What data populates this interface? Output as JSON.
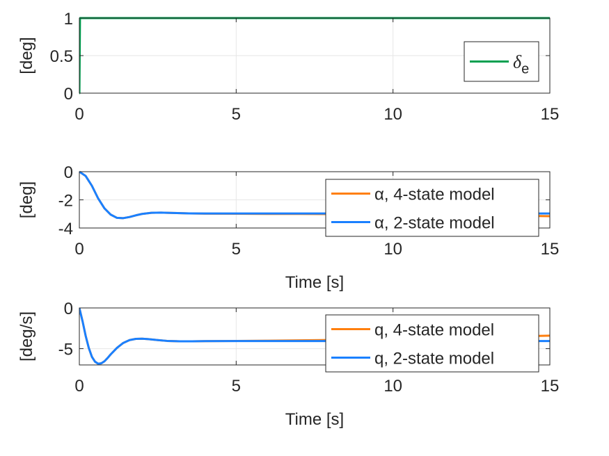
{
  "chart_data": [
    {
      "type": "line",
      "ylabel": "[deg]",
      "xlabel": "",
      "xlim": [
        0,
        15
      ],
      "ylim": [
        0,
        1
      ],
      "xticks": [
        "0",
        "5",
        "10",
        "15"
      ],
      "yticks": [
        "0",
        "0.5",
        "1"
      ],
      "grid": true,
      "legend_position": "right",
      "series": [
        {
          "name": "δ",
          "name_sub": "e",
          "color": "#00a050",
          "x": [
            0,
            0.001,
            0.02,
            0.03,
            15
          ],
          "y": [
            0,
            0.0,
            1,
            1,
            1
          ]
        }
      ]
    },
    {
      "type": "line",
      "ylabel": "[deg]",
      "xlabel": "Time [s]",
      "xlim": [
        0,
        15
      ],
      "ylim": [
        -4,
        0
      ],
      "xticks": [
        "0",
        "5",
        "10",
        "15"
      ],
      "yticks": [
        "-4",
        "-2",
        "0"
      ],
      "grid": true,
      "legend_position": "right",
      "series": [
        {
          "name": "α, 4-state model",
          "color": "#ff7f0e",
          "x": [
            0,
            0.2,
            0.4,
            0.6,
            0.8,
            1.0,
            1.2,
            1.4,
            1.6,
            1.8,
            2.0,
            2.3,
            2.6,
            3.0,
            3.5,
            4.0,
            5.0,
            6.0,
            7.0,
            8.0,
            9.0,
            10.0,
            11.0,
            12.0,
            13.0,
            14.0,
            15.0
          ],
          "y": [
            0,
            -0.3,
            -1.0,
            -1.9,
            -2.6,
            -3.05,
            -3.28,
            -3.3,
            -3.22,
            -3.1,
            -3.0,
            -2.92,
            -2.91,
            -2.93,
            -2.96,
            -2.98,
            -2.99,
            -3.0,
            -3.0,
            -3.01,
            -3.02,
            -3.04,
            -3.06,
            -3.08,
            -3.1,
            -3.13,
            -3.16
          ]
        },
        {
          "name": "α, 2-state model",
          "color": "#1a80ff",
          "x": [
            0,
            0.2,
            0.4,
            0.6,
            0.8,
            1.0,
            1.2,
            1.4,
            1.6,
            1.8,
            2.0,
            2.3,
            2.6,
            3.0,
            3.5,
            4.0,
            5.0,
            6.0,
            7.0,
            8.0,
            9.0,
            10.0,
            11.0,
            12.0,
            13.0,
            14.0,
            15.0
          ],
          "y": [
            0,
            -0.3,
            -1.0,
            -1.9,
            -2.6,
            -3.05,
            -3.28,
            -3.3,
            -3.22,
            -3.1,
            -3.0,
            -2.92,
            -2.91,
            -2.93,
            -2.96,
            -2.97,
            -2.97,
            -2.97,
            -2.97,
            -2.97,
            -2.97,
            -2.97,
            -2.97,
            -2.97,
            -2.97,
            -2.97,
            -2.97
          ]
        }
      ]
    },
    {
      "type": "line",
      "ylabel": "[deg/s]",
      "xlabel": "Time [s]",
      "xlim": [
        0,
        15
      ],
      "ylim": [
        -7,
        0
      ],
      "xticks": [
        "0",
        "5",
        "10",
        "15"
      ],
      "yticks": [
        "-5",
        "0"
      ],
      "grid": true,
      "legend_position": "right",
      "series": [
        {
          "name": "q, 4-state model",
          "color": "#ff7f0e",
          "x": [
            0,
            0.1,
            0.2,
            0.3,
            0.4,
            0.5,
            0.6,
            0.7,
            0.8,
            0.9,
            1.0,
            1.2,
            1.4,
            1.6,
            1.8,
            2.0,
            2.2,
            2.5,
            2.8,
            3.2,
            3.6,
            4.0,
            5.0,
            6.0,
            7.0,
            8.0,
            9.0,
            10.0,
            11.0,
            12.0,
            13.0,
            14.0,
            15.0
          ],
          "y": [
            0,
            -1.6,
            -3.4,
            -4.9,
            -6.0,
            -6.6,
            -6.85,
            -6.8,
            -6.55,
            -6.15,
            -5.7,
            -4.9,
            -4.3,
            -3.95,
            -3.8,
            -3.78,
            -3.83,
            -3.95,
            -4.05,
            -4.1,
            -4.1,
            -4.08,
            -4.05,
            -4.02,
            -3.98,
            -3.94,
            -3.88,
            -3.82,
            -3.76,
            -3.68,
            -3.6,
            -3.5,
            -3.4
          ]
        },
        {
          "name": "q, 2-state model",
          "color": "#1a80ff",
          "x": [
            0,
            0.1,
            0.2,
            0.3,
            0.4,
            0.5,
            0.6,
            0.7,
            0.8,
            0.9,
            1.0,
            1.2,
            1.4,
            1.6,
            1.8,
            2.0,
            2.2,
            2.5,
            2.8,
            3.2,
            3.6,
            4.0,
            5.0,
            6.0,
            7.0,
            8.0,
            9.0,
            10.0,
            11.0,
            12.0,
            13.0,
            14.0,
            15.0
          ],
          "y": [
            0,
            -1.6,
            -3.4,
            -4.9,
            -6.0,
            -6.6,
            -6.85,
            -6.8,
            -6.55,
            -6.15,
            -5.7,
            -4.9,
            -4.3,
            -3.95,
            -3.8,
            -3.78,
            -3.83,
            -3.95,
            -4.05,
            -4.1,
            -4.1,
            -4.08,
            -4.07,
            -4.07,
            -4.07,
            -4.07,
            -4.07,
            -4.07,
            -4.07,
            -4.07,
            -4.07,
            -4.07,
            -4.07
          ]
        }
      ]
    }
  ]
}
